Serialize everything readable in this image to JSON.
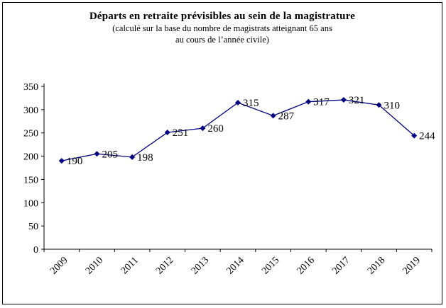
{
  "chart_data": {
    "type": "line",
    "title": "Départs en retraite prévisibles au sein de la magistrature",
    "subtitle_line1": "(calculé sur la base du nombre de magistrats atteignant 65 ans",
    "subtitle_line2": "au cours de l’année civile)",
    "categories": [
      "2009",
      "2010",
      "2011",
      "2012",
      "2013",
      "2014",
      "2015",
      "2016",
      "2017",
      "2018",
      "2019"
    ],
    "series": [
      {
        "name": "Départs en retraite prévisibles",
        "values": [
          190,
          205,
          198,
          251,
          260,
          315,
          287,
          317,
          321,
          310,
          244
        ]
      }
    ],
    "ylim": [
      0,
      350
    ],
    "ytick_step": 50,
    "grid": false,
    "legend_position": "none",
    "line_color": "#000080",
    "marker": "diamond",
    "data_labels": true,
    "axis_color": "#000000",
    "label_font_size": 15,
    "tick_font_size": 14
  }
}
